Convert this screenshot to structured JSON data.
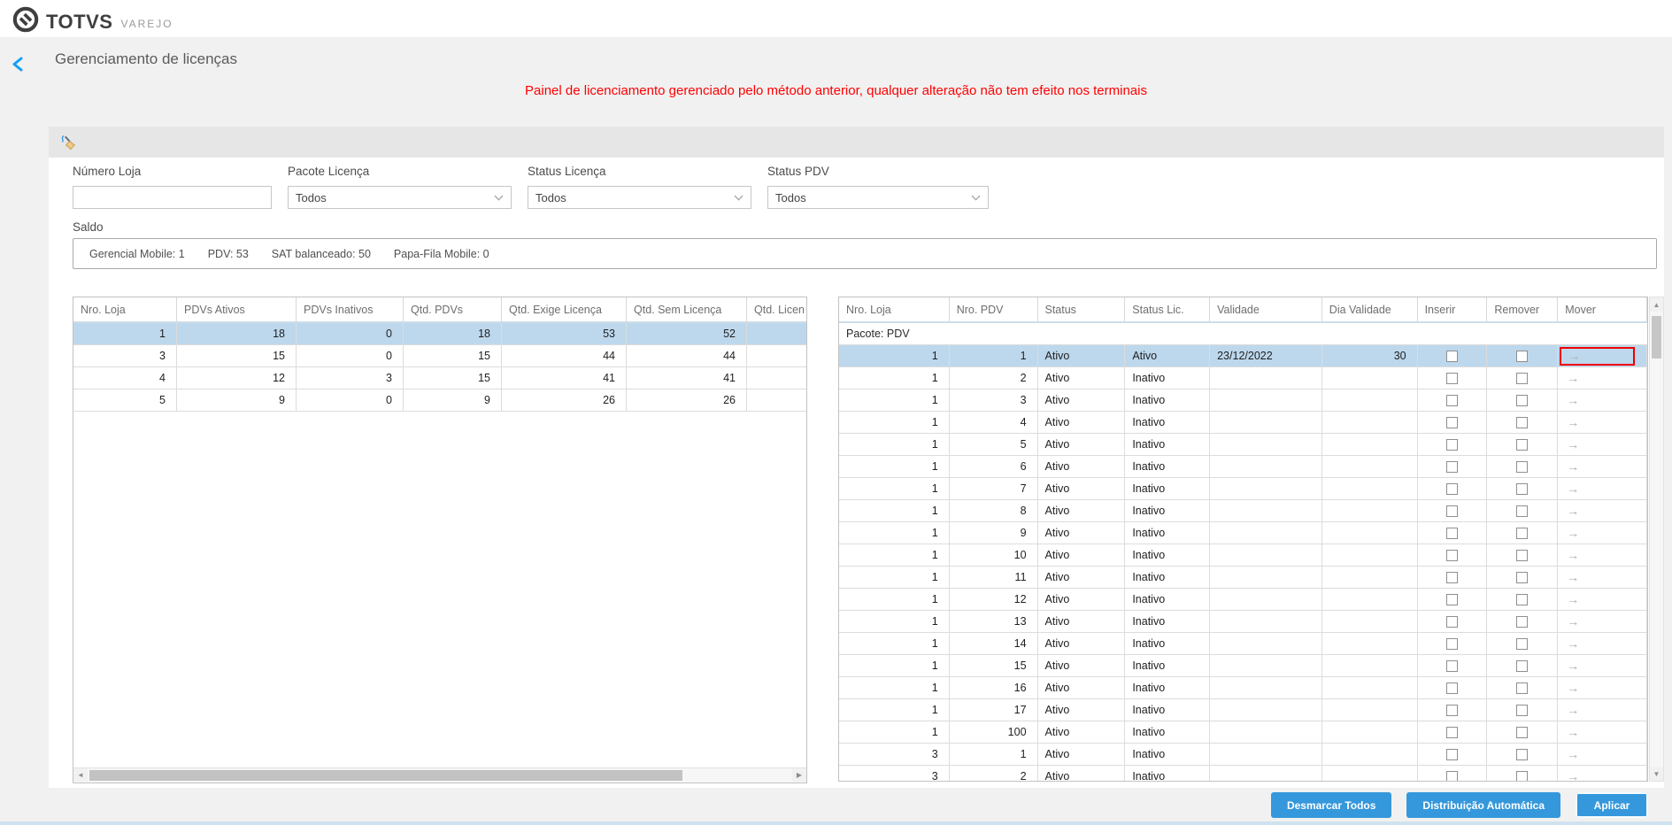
{
  "topbar": {
    "brand": "TOTVS",
    "product": "VAREJO"
  },
  "page": {
    "title": "Gerenciamento de licenças",
    "warning": "Painel de licenciamento gerenciado pelo método anterior, qualquer alteração não tem efeito nos terminais"
  },
  "filters": {
    "numero_loja_label": "Número Loja",
    "numero_loja_value": "",
    "pacote_licenca_label": "Pacote Licença",
    "pacote_licenca_value": "Todos",
    "status_licenca_label": "Status Licença",
    "status_licenca_value": "Todos",
    "status_pdv_label": "Status PDV",
    "status_pdv_value": "Todos"
  },
  "saldo": {
    "label": "Saldo",
    "items": [
      "Gerencial Mobile: 1",
      "PDV: 53",
      "SAT balanceado: 50",
      "Papa-Fila Mobile: 0"
    ]
  },
  "left_table": {
    "headers": [
      "Nro. Loja",
      "PDVs Ativos",
      "PDVs Inativos",
      "Qtd. PDVs",
      "Qtd. Exige Licença",
      "Qtd. Sem Licença",
      "Qtd. Licen"
    ],
    "rows": [
      [
        "1",
        "18",
        "0",
        "18",
        "53",
        "52",
        ""
      ],
      [
        "3",
        "15",
        "0",
        "15",
        "44",
        "44",
        ""
      ],
      [
        "4",
        "12",
        "3",
        "15",
        "41",
        "41",
        ""
      ],
      [
        "5",
        "9",
        "0",
        "9",
        "26",
        "26",
        ""
      ]
    ],
    "selected_row": 0
  },
  "right_table": {
    "headers": [
      "Nro. Loja",
      "Nro. PDV",
      "Status",
      "Status Lic.",
      "Validade",
      "Dia Validade",
      "Inserir",
      "Remover",
      "Mover"
    ],
    "group_label": "Pacote: PDV",
    "rows": [
      {
        "loja": "1",
        "pdv": "1",
        "status": "Ativo",
        "status_lic": "Ativo",
        "validade": "23/12/2022",
        "dia_validade": "30",
        "selected": true,
        "mover_annotated": true
      },
      {
        "loja": "1",
        "pdv": "2",
        "status": "Ativo",
        "status_lic": "Inativo",
        "validade": "",
        "dia_validade": ""
      },
      {
        "loja": "1",
        "pdv": "3",
        "status": "Ativo",
        "status_lic": "Inativo",
        "validade": "",
        "dia_validade": ""
      },
      {
        "loja": "1",
        "pdv": "4",
        "status": "Ativo",
        "status_lic": "Inativo",
        "validade": "",
        "dia_validade": ""
      },
      {
        "loja": "1",
        "pdv": "5",
        "status": "Ativo",
        "status_lic": "Inativo",
        "validade": "",
        "dia_validade": ""
      },
      {
        "loja": "1",
        "pdv": "6",
        "status": "Ativo",
        "status_lic": "Inativo",
        "validade": "",
        "dia_validade": ""
      },
      {
        "loja": "1",
        "pdv": "7",
        "status": "Ativo",
        "status_lic": "Inativo",
        "validade": "",
        "dia_validade": ""
      },
      {
        "loja": "1",
        "pdv": "8",
        "status": "Ativo",
        "status_lic": "Inativo",
        "validade": "",
        "dia_validade": ""
      },
      {
        "loja": "1",
        "pdv": "9",
        "status": "Ativo",
        "status_lic": "Inativo",
        "validade": "",
        "dia_validade": ""
      },
      {
        "loja": "1",
        "pdv": "10",
        "status": "Ativo",
        "status_lic": "Inativo",
        "validade": "",
        "dia_validade": ""
      },
      {
        "loja": "1",
        "pdv": "11",
        "status": "Ativo",
        "status_lic": "Inativo",
        "validade": "",
        "dia_validade": ""
      },
      {
        "loja": "1",
        "pdv": "12",
        "status": "Ativo",
        "status_lic": "Inativo",
        "validade": "",
        "dia_validade": ""
      },
      {
        "loja": "1",
        "pdv": "13",
        "status": "Ativo",
        "status_lic": "Inativo",
        "validade": "",
        "dia_validade": ""
      },
      {
        "loja": "1",
        "pdv": "14",
        "status": "Ativo",
        "status_lic": "Inativo",
        "validade": "",
        "dia_validade": ""
      },
      {
        "loja": "1",
        "pdv": "15",
        "status": "Ativo",
        "status_lic": "Inativo",
        "validade": "",
        "dia_validade": ""
      },
      {
        "loja": "1",
        "pdv": "16",
        "status": "Ativo",
        "status_lic": "Inativo",
        "validade": "",
        "dia_validade": ""
      },
      {
        "loja": "1",
        "pdv": "17",
        "status": "Ativo",
        "status_lic": "Inativo",
        "validade": "",
        "dia_validade": ""
      },
      {
        "loja": "1",
        "pdv": "100",
        "status": "Ativo",
        "status_lic": "Inativo",
        "validade": "",
        "dia_validade": ""
      },
      {
        "loja": "3",
        "pdv": "1",
        "status": "Ativo",
        "status_lic": "Inativo",
        "validade": "",
        "dia_validade": ""
      },
      {
        "loja": "3",
        "pdv": "2",
        "status": "Ativo",
        "status_lic": "Inativo",
        "validade": "",
        "dia_validade": ""
      }
    ]
  },
  "actions": {
    "desmarcar": "Desmarcar Todos",
    "distribuicao": "Distribuição Automática",
    "aplicar": "Aplicar"
  },
  "colors": {
    "accent": "#3598dc",
    "selection": "#bdd8ed",
    "warning": "#ff0000"
  }
}
